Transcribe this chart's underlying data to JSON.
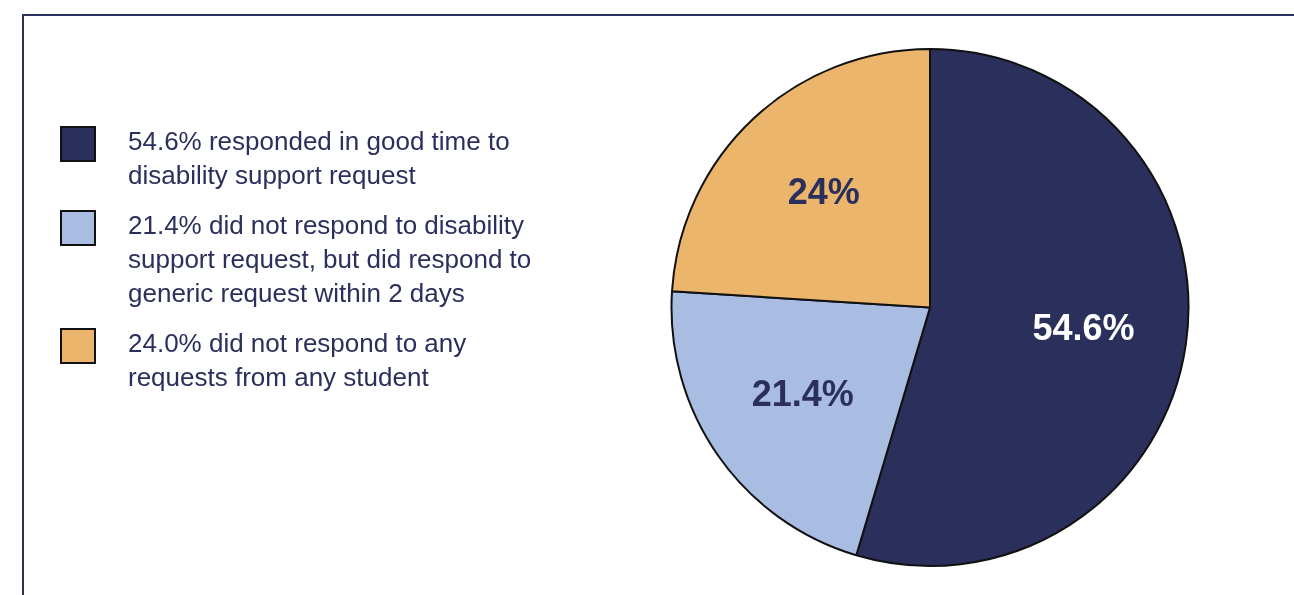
{
  "chart_data": {
    "type": "pie",
    "categories": [
      "54.6% responded in good time to disability support request",
      "21.4% did not respond to disability support request, but did respond to generic request within 2 days",
      "24.0% did not respond to any requests from any student"
    ],
    "values": [
      54.6,
      21.4,
      24
    ],
    "colors": [
      "#2b2f5c",
      "#a9bde3",
      "#ebb56b"
    ],
    "value_labels": [
      "54.6%",
      "21.4%",
      "24%"
    ],
    "legend": "left"
  }
}
